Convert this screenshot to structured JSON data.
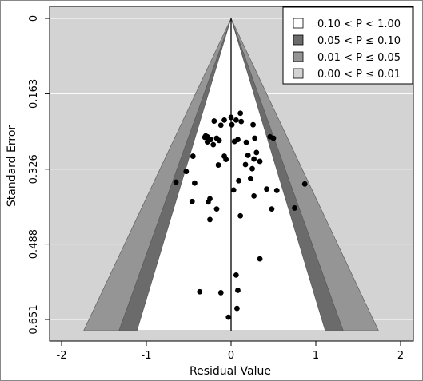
{
  "chart_data": {
    "type": "scatter",
    "subtype": "contour-enhanced funnel plot",
    "xlabel": "Residual Value",
    "ylabel": "Standard Error",
    "xlim": [
      -2.2,
      2.2
    ],
    "ylim": [
      0.651,
      0
    ],
    "y_inverted": true,
    "x_ticks": [
      -2,
      -1,
      0,
      1,
      2
    ],
    "x_tick_labels": [
      "-2",
      "-1",
      "0",
      "1",
      "2"
    ],
    "y_ticks": [
      0,
      0.163,
      0.326,
      0.488,
      0.651
    ],
    "y_tick_labels": [
      "0",
      "0.163",
      "0.326",
      "0.488",
      "0.651"
    ],
    "grid": "horizontal",
    "legend_position": "top-right",
    "legend": [
      {
        "label": "0.10 < P < 1.00",
        "color": "#ffffff"
      },
      {
        "label": "0.05 < P ≤ 0.10",
        "color": "#6b6b6b"
      },
      {
        "label": "0.01 < P ≤ 0.05",
        "color": "#959595"
      },
      {
        "label": "0.00 < P ≤ 0.01",
        "color": "#d3d3d3"
      }
    ],
    "contour_z": [
      1.645,
      1.96,
      2.576
    ],
    "background_color": "#d3d3d3",
    "point_color": "#000000",
    "points": [
      {
        "x": 0.0,
        "y": 0.214
      },
      {
        "x": 0.06,
        "y": 0.22
      },
      {
        "x": 0.11,
        "y": 0.205
      },
      {
        "x": 0.12,
        "y": 0.223
      },
      {
        "x": -0.08,
        "y": 0.22
      },
      {
        "x": -0.12,
        "y": 0.231
      },
      {
        "x": -0.2,
        "y": 0.222
      },
      {
        "x": 0.01,
        "y": 0.23
      },
      {
        "x": 0.26,
        "y": 0.23
      },
      {
        "x": -0.28,
        "y": 0.256
      },
      {
        "x": -0.3,
        "y": 0.254
      },
      {
        "x": -0.31,
        "y": 0.257
      },
      {
        "x": -0.24,
        "y": 0.262
      },
      {
        "x": -0.17,
        "y": 0.259
      },
      {
        "x": -0.28,
        "y": 0.267
      },
      {
        "x": -0.21,
        "y": 0.273
      },
      {
        "x": -0.14,
        "y": 0.264
      },
      {
        "x": 0.08,
        "y": 0.262
      },
      {
        "x": 0.04,
        "y": 0.266
      },
      {
        "x": 0.18,
        "y": 0.268
      },
      {
        "x": 0.28,
        "y": 0.259
      },
      {
        "x": 0.46,
        "y": 0.256
      },
      {
        "x": 0.5,
        "y": 0.259
      },
      {
        "x": 0.3,
        "y": 0.29
      },
      {
        "x": -0.45,
        "y": 0.298
      },
      {
        "x": -0.08,
        "y": 0.298
      },
      {
        "x": 0.2,
        "y": 0.296
      },
      {
        "x": 0.27,
        "y": 0.304
      },
      {
        "x": -0.06,
        "y": 0.305
      },
      {
        "x": -0.15,
        "y": 0.317
      },
      {
        "x": 0.17,
        "y": 0.316
      },
      {
        "x": 0.34,
        "y": 0.309
      },
      {
        "x": -0.53,
        "y": 0.331
      },
      {
        "x": 0.25,
        "y": 0.325
      },
      {
        "x": 0.09,
        "y": 0.351
      },
      {
        "x": 0.23,
        "y": 0.346
      },
      {
        "x": -0.43,
        "y": 0.356
      },
      {
        "x": -0.65,
        "y": 0.354
      },
      {
        "x": 0.03,
        "y": 0.371
      },
      {
        "x": 0.42,
        "y": 0.369
      },
      {
        "x": 0.54,
        "y": 0.372
      },
      {
        "x": -0.25,
        "y": 0.39
      },
      {
        "x": 0.27,
        "y": 0.384
      },
      {
        "x": -0.46,
        "y": 0.396
      },
      {
        "x": -0.27,
        "y": 0.397
      },
      {
        "x": -0.17,
        "y": 0.412
      },
      {
        "x": 0.48,
        "y": 0.412
      },
      {
        "x": 0.87,
        "y": 0.358
      },
      {
        "x": 0.75,
        "y": 0.41
      },
      {
        "x": 0.11,
        "y": 0.427
      },
      {
        "x": -0.25,
        "y": 0.435
      },
      {
        "x": 0.34,
        "y": 0.52
      },
      {
        "x": 0.06,
        "y": 0.555
      },
      {
        "x": -0.37,
        "y": 0.591
      },
      {
        "x": -0.12,
        "y": 0.593
      },
      {
        "x": 0.08,
        "y": 0.588
      },
      {
        "x": 0.07,
        "y": 0.627
      },
      {
        "x": -0.03,
        "y": 0.646
      }
    ]
  }
}
